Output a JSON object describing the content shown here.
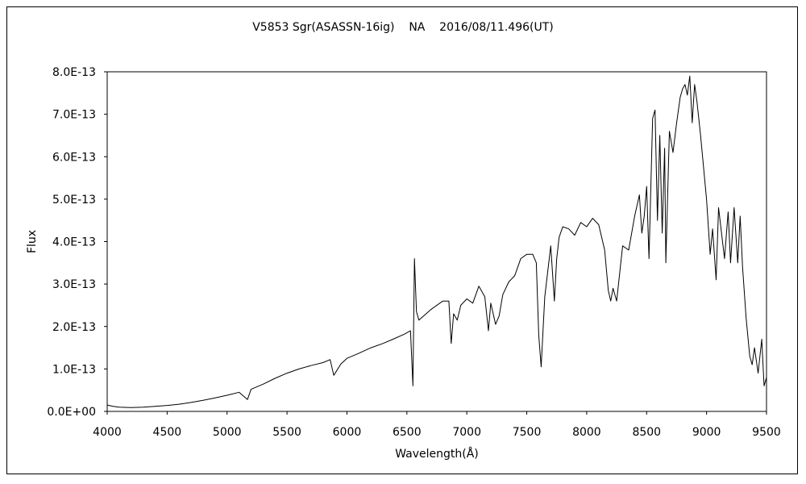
{
  "chart_data": {
    "type": "line",
    "title": "V5853 Sgr(ASASSN-16ig)    NA    2016/08/11.496(UT)",
    "xlabel": "Wavelength(Å)",
    "ylabel": "Flux",
    "xlim": [
      4000,
      9500
    ],
    "ylim": [
      0,
      8e-13
    ],
    "x_ticks": [
      4000,
      4500,
      5000,
      5500,
      6000,
      6500,
      7000,
      7500,
      8000,
      8500,
      9000,
      9500
    ],
    "x_tick_labels": [
      "4000",
      "4500",
      "5000",
      "5500",
      "6000",
      "6500",
      "7000",
      "7500",
      "8000",
      "8500",
      "9000",
      "9500"
    ],
    "y_ticks": [
      0,
      1e-13,
      2e-13,
      3e-13,
      4e-13,
      5e-13,
      6e-13,
      7e-13,
      8e-13
    ],
    "y_tick_labels": [
      "0.0E+00",
      "1.0E-13",
      "2.0E-13",
      "3.0E-13",
      "4.0E-13",
      "5.0E-13",
      "6.0E-13",
      "7.0E-13",
      "8.0E-13"
    ],
    "grid": false,
    "legend": "none",
    "series": [
      {
        "color": "#000000",
        "x": [
          4000,
          4050,
          4100,
          4200,
          4300,
          4400,
          4500,
          4600,
          4700,
          4800,
          4900,
          5000,
          5100,
          5170,
          5200,
          5300,
          5400,
          5500,
          5600,
          5700,
          5800,
          5860,
          5890,
          5950,
          6000,
          6100,
          6200,
          6300,
          6400,
          6480,
          6530,
          6550,
          6563,
          6580,
          6600,
          6700,
          6800,
          6850,
          6870,
          6890,
          6920,
          6950,
          7000,
          7050,
          7100,
          7150,
          7180,
          7200,
          7240,
          7270,
          7300,
          7350,
          7400,
          7450,
          7500,
          7550,
          7580,
          7600,
          7620,
          7650,
          7700,
          7730,
          7750,
          7770,
          7800,
          7850,
          7900,
          7950,
          8000,
          8050,
          8100,
          8150,
          8180,
          8200,
          8220,
          8250,
          8300,
          8350,
          8400,
          8440,
          8460,
          8480,
          8500,
          8520,
          8550,
          8570,
          8590,
          8610,
          8630,
          8650,
          8660,
          8690,
          8720,
          8750,
          8780,
          8800,
          8820,
          8840,
          8860,
          8880,
          8900,
          8920,
          8950,
          9000,
          9030,
          9050,
          9080,
          9100,
          9150,
          9180,
          9200,
          9230,
          9260,
          9280,
          9300,
          9330,
          9360,
          9380,
          9400,
          9430,
          9460,
          9480,
          9500
        ],
        "y": [
          1.5e-14,
          1.2e-14,
          1e-14,
          9e-15,
          1e-14,
          1.2e-14,
          1.4e-14,
          1.7e-14,
          2.1e-14,
          2.6e-14,
          3.2e-14,
          3.8e-14,
          4.5e-14,
          2.8e-14,
          5.2e-14,
          6.4e-14,
          7.8e-14,
          9e-14,
          1e-13,
          1.08e-13,
          1.15e-13,
          1.22e-13,
          8.5e-14,
          1.12e-13,
          1.25e-13,
          1.37e-13,
          1.5e-13,
          1.6e-13,
          1.72e-13,
          1.82e-13,
          1.9e-13,
          6e-14,
          3.6e-13,
          2.35e-13,
          2.15e-13,
          2.4e-13,
          2.6e-13,
          2.6e-13,
          1.6e-13,
          2.3e-13,
          2.15e-13,
          2.5e-13,
          2.65e-13,
          2.55e-13,
          2.95e-13,
          2.7e-13,
          1.9e-13,
          2.55e-13,
          2.05e-13,
          2.25e-13,
          2.75e-13,
          3.05e-13,
          3.2e-13,
          3.6e-13,
          3.7e-13,
          3.7e-13,
          3.5e-13,
          1.8e-13,
          1.05e-13,
          2.7e-13,
          3.9e-13,
          2.6e-13,
          3.6e-13,
          4.1e-13,
          4.35e-13,
          4.3e-13,
          4.15e-13,
          4.45e-13,
          4.35e-13,
          4.55e-13,
          4.4e-13,
          3.8e-13,
          2.85e-13,
          2.6e-13,
          2.9e-13,
          2.6e-13,
          3.9e-13,
          3.8e-13,
          4.6e-13,
          5.1e-13,
          4.2e-13,
          4.6e-13,
          5.3e-13,
          3.6e-13,
          6.9e-13,
          7.1e-13,
          4.5e-13,
          6.5e-13,
          4.2e-13,
          6.2e-13,
          3.5e-13,
          6.6e-13,
          6.1e-13,
          6.8e-13,
          7.4e-13,
          7.6e-13,
          7.7e-13,
          7.45e-13,
          7.9e-13,
          6.8e-13,
          7.7e-13,
          7.3e-13,
          6.5e-13,
          5e-13,
          3.7e-13,
          4.3e-13,
          3.1e-13,
          4.8e-13,
          3.6e-13,
          4.7e-13,
          3.5e-13,
          4.8e-13,
          3.5e-13,
          4.6e-13,
          3.4e-13,
          2.2e-13,
          1.3e-13,
          1.1e-13,
          1.5e-13,
          9e-14,
          1.7e-13,
          6e-14,
          8e-14
        ]
      }
    ]
  }
}
